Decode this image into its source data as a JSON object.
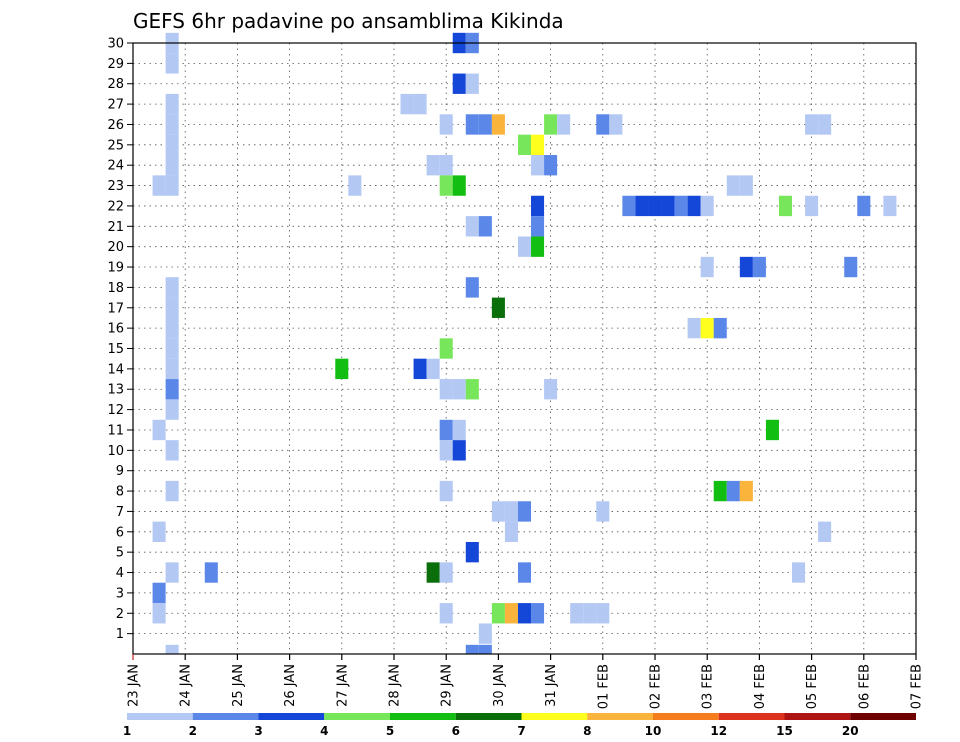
{
  "chart_data": {
    "type": "heatmap",
    "title": "GEFS 6hr padavine po ansamblima Kikinda",
    "ylim": [
      0,
      30
    ],
    "y_ticks": [
      "1",
      "2",
      "3",
      "4",
      "5",
      "6",
      "7",
      "8",
      "9",
      "10",
      "11",
      "12",
      "13",
      "14",
      "15",
      "16",
      "17",
      "18",
      "19",
      "20",
      "21",
      "22",
      "23",
      "24",
      "25",
      "26",
      "27",
      "28",
      "29",
      "30"
    ],
    "x_unit": "days since 23 JAN",
    "x_range": [
      0,
      15
    ],
    "x_ticks": [
      {
        "x": 0,
        "label": "23 JAN"
      },
      {
        "x": 1,
        "label": "24 JAN"
      },
      {
        "x": 2,
        "label": "25 JAN"
      },
      {
        "x": 3,
        "label": "26 JAN"
      },
      {
        "x": 4,
        "label": "27 JAN"
      },
      {
        "x": 5,
        "label": "28 JAN"
      },
      {
        "x": 6,
        "label": "29 JAN"
      },
      {
        "x": 7,
        "label": "30 JAN"
      },
      {
        "x": 8,
        "label": "31 JAN"
      },
      {
        "x": 9,
        "label": "01 FEB"
      },
      {
        "x": 10,
        "label": "02 FEB"
      },
      {
        "x": 11,
        "label": "03 FEB"
      },
      {
        "x": 12,
        "label": "04 FEB"
      },
      {
        "x": 13,
        "label": "05 FEB"
      },
      {
        "x": 14,
        "label": "06 FEB"
      },
      {
        "x": 15,
        "label": "07 FEB"
      }
    ],
    "grid": true,
    "colorbar": {
      "labels": [
        "1",
        "2",
        "3",
        "4",
        "5",
        "6",
        "7",
        "8",
        "10",
        "12",
        "15",
        "20"
      ],
      "colors": [
        "#b4c8f4",
        "#5a87e8",
        "#1446d8",
        "#78e65a",
        "#12be12",
        "#0a6e0a",
        "#ffff1e",
        "#fab43c",
        "#f57d1e",
        "#dc321e",
        "#af1414",
        "#6e0000"
      ]
    },
    "cells": [
      [
        0.75,
        30,
        1
      ],
      [
        0.75,
        29,
        1
      ],
      [
        0.75,
        27,
        1
      ],
      [
        0.75,
        26,
        1
      ],
      [
        0.75,
        25,
        1
      ],
      [
        0.75,
        24,
        1
      ],
      [
        0.5,
        23,
        1
      ],
      [
        0.75,
        23,
        1
      ],
      [
        0.75,
        18,
        1
      ],
      [
        0.75,
        17,
        1
      ],
      [
        0.75,
        16,
        1
      ],
      [
        0.75,
        15,
        1
      ],
      [
        0.75,
        14,
        1
      ],
      [
        0.75,
        13,
        2
      ],
      [
        0.75,
        12,
        1
      ],
      [
        0.5,
        11,
        1
      ],
      [
        0.75,
        10,
        1
      ],
      [
        0.75,
        8,
        1
      ],
      [
        0.5,
        6,
        1
      ],
      [
        0.75,
        4,
        1
      ],
      [
        0.5,
        3,
        2
      ],
      [
        0.5,
        2,
        1
      ],
      [
        0.75,
        0,
        1
      ],
      [
        1.5,
        4,
        2
      ],
      [
        4.0,
        14,
        5
      ],
      [
        4.25,
        23,
        1
      ],
      [
        5.25,
        27,
        1
      ],
      [
        5.5,
        27,
        1
      ],
      [
        5.5,
        14,
        3
      ],
      [
        5.75,
        14,
        1
      ],
      [
        5.75,
        24,
        1
      ],
      [
        5.75,
        4,
        6
      ],
      [
        6.0,
        4,
        1
      ],
      [
        6.0,
        26,
        1
      ],
      [
        6.0,
        24,
        1
      ],
      [
        6.0,
        23,
        4
      ],
      [
        6.0,
        15,
        4
      ],
      [
        6.0,
        13,
        1
      ],
      [
        6.0,
        11,
        2
      ],
      [
        6.0,
        10,
        1
      ],
      [
        6.0,
        8,
        1
      ],
      [
        6.0,
        2,
        1
      ],
      [
        6.25,
        23,
        5
      ],
      [
        6.25,
        30,
        3
      ],
      [
        6.25,
        28,
        3
      ],
      [
        6.25,
        13,
        1
      ],
      [
        6.25,
        11,
        1
      ],
      [
        6.25,
        10,
        3
      ],
      [
        6.5,
        30,
        2
      ],
      [
        6.5,
        28,
        1
      ],
      [
        6.5,
        26,
        2
      ],
      [
        6.5,
        21,
        1
      ],
      [
        6.5,
        18,
        2
      ],
      [
        6.5,
        13,
        4
      ],
      [
        6.5,
        5,
        3
      ],
      [
        6.5,
        0,
        2
      ],
      [
        6.75,
        26,
        2
      ],
      [
        6.75,
        21,
        2
      ],
      [
        6.75,
        1,
        1
      ],
      [
        6.75,
        0,
        2
      ],
      [
        7.0,
        26,
        8
      ],
      [
        7.0,
        17,
        6
      ],
      [
        7.0,
        7,
        1
      ],
      [
        7.0,
        2,
        4
      ],
      [
        7.25,
        7,
        1
      ],
      [
        7.25,
        6,
        1
      ],
      [
        7.25,
        2,
        8
      ],
      [
        7.5,
        25,
        4
      ],
      [
        7.5,
        20,
        1
      ],
      [
        7.5,
        7,
        2
      ],
      [
        7.5,
        4,
        2
      ],
      [
        7.5,
        2,
        3
      ],
      [
        7.75,
        25,
        7
      ],
      [
        7.75,
        24,
        1
      ],
      [
        7.75,
        22,
        3
      ],
      [
        7.75,
        21,
        2
      ],
      [
        7.75,
        20,
        5
      ],
      [
        7.75,
        2,
        2
      ],
      [
        8.0,
        26,
        4
      ],
      [
        8.0,
        24,
        2
      ],
      [
        8.0,
        13,
        1
      ],
      [
        8.25,
        26,
        1
      ],
      [
        8.5,
        2,
        1
      ],
      [
        8.75,
        2,
        1
      ],
      [
        9.0,
        2,
        1
      ],
      [
        9.0,
        7,
        1
      ],
      [
        9.0,
        26,
        2
      ],
      [
        9.25,
        26,
        1
      ],
      [
        9.5,
        22,
        2
      ],
      [
        9.75,
        22,
        3
      ],
      [
        10.0,
        22,
        3
      ],
      [
        10.25,
        22,
        3
      ],
      [
        10.5,
        22,
        2
      ],
      [
        10.75,
        22,
        3
      ],
      [
        10.75,
        16,
        1
      ],
      [
        11.0,
        22,
        1
      ],
      [
        11.0,
        19,
        1
      ],
      [
        11.0,
        16,
        7
      ],
      [
        11.25,
        16,
        2
      ],
      [
        11.25,
        8,
        5
      ],
      [
        11.5,
        23,
        1
      ],
      [
        11.5,
        8,
        2
      ],
      [
        11.75,
        23,
        1
      ],
      [
        11.75,
        19,
        3
      ],
      [
        11.75,
        8,
        8
      ],
      [
        12.0,
        19,
        2
      ],
      [
        12.25,
        11,
        5
      ],
      [
        12.5,
        22,
        4
      ],
      [
        12.75,
        4,
        1
      ],
      [
        13.0,
        26,
        1
      ],
      [
        13.0,
        22,
        1
      ],
      [
        13.25,
        26,
        1
      ],
      [
        13.25,
        6,
        1
      ],
      [
        13.75,
        19,
        2
      ],
      [
        14.0,
        22,
        2
      ],
      [
        14.5,
        22,
        1
      ]
    ]
  }
}
